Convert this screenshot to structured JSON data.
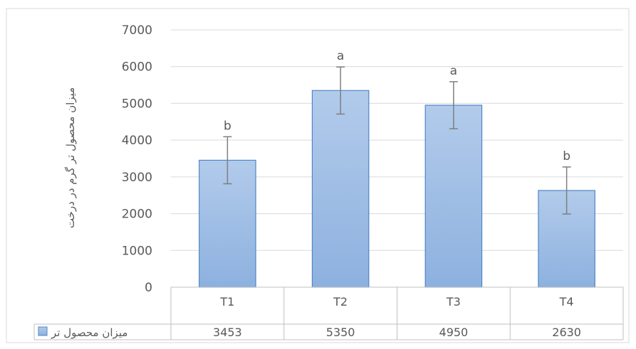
{
  "chart_data": {
    "type": "bar",
    "title": "",
    "ylabel": "میزان محصول تر گرم در درخت",
    "xlabel": "",
    "ylim": [
      0,
      7000
    ],
    "yticks": [
      0,
      1000,
      2000,
      3000,
      4000,
      5000,
      6000,
      7000
    ],
    "grid": true,
    "categories": [
      "T1",
      "T2",
      "T3",
      "T4"
    ],
    "series": [
      {
        "name": "میزان محصول تر",
        "values": [
          3453,
          5350,
          4950,
          2630
        ],
        "error": [
          640,
          640,
          640,
          640
        ],
        "significance_letters": [
          "b",
          "a",
          "a",
          "b"
        ],
        "color": "#8fb4e3"
      }
    ],
    "data_table": true,
    "legend": "data-table-row"
  }
}
